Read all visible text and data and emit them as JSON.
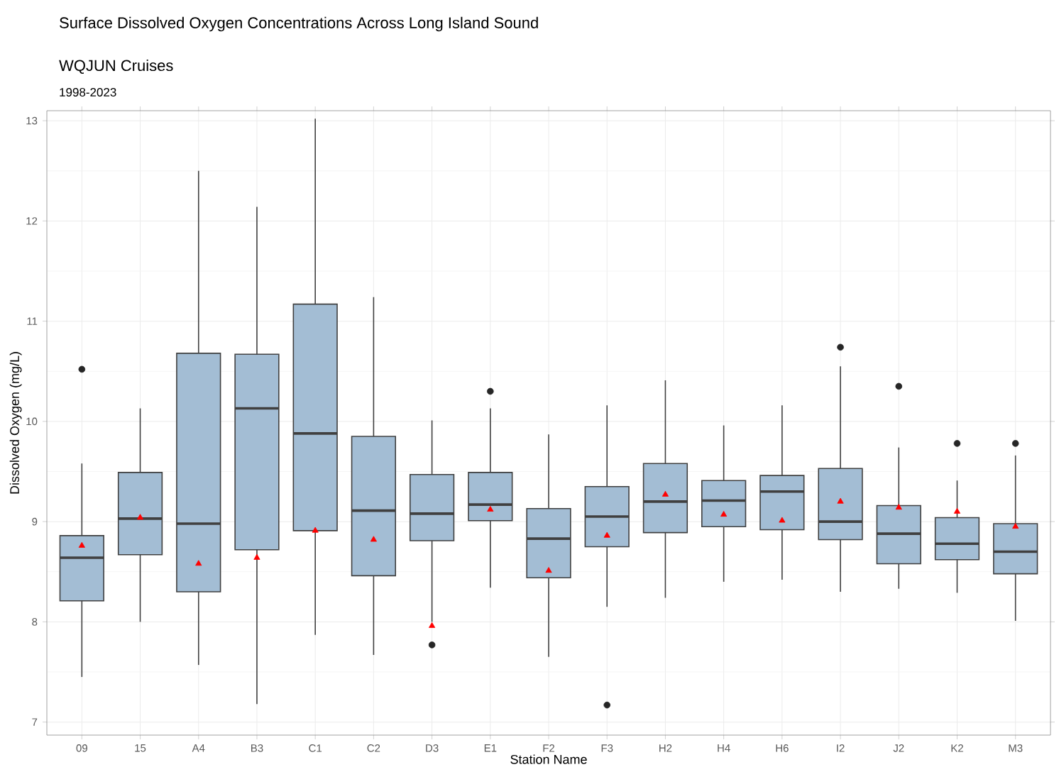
{
  "chart_data": {
    "type": "box",
    "title": "Surface Dissolved Oxygen Concentrations Across Long Island Sound",
    "subtitle": "WQJUN Cruises",
    "annotations": [
      "1998-2023"
    ],
    "xlabel": "Station Name",
    "ylabel": "Dissolved Oxygen (mg/L)",
    "categories": [
      "09",
      "15",
      "A4",
      "B3",
      "C1",
      "C2",
      "D3",
      "E1",
      "F2",
      "F3",
      "H2",
      "H4",
      "H6",
      "I2",
      "J2",
      "K2",
      "M3"
    ],
    "color": "#a3bdd4",
    "ylim": [
      6.87,
      13.1
    ],
    "yticks": [
      7,
      8,
      9,
      10,
      11,
      12,
      13
    ],
    "grid": true,
    "boxes": [
      {
        "low": 7.45,
        "q1": 8.21,
        "median": 8.64,
        "q3": 8.86,
        "high": 9.58,
        "mean": 8.76,
        "outliers": [
          10.52
        ]
      },
      {
        "low": 8.0,
        "q1": 8.67,
        "median": 9.03,
        "q3": 9.49,
        "high": 10.13,
        "mean": 9.04
      },
      {
        "low": 7.57,
        "q1": 8.3,
        "median": 8.98,
        "q3": 10.68,
        "high": 12.5,
        "mean": 8.58
      },
      {
        "low": 7.18,
        "q1": 8.72,
        "median": 10.13,
        "q3": 10.67,
        "high": 12.14,
        "mean": 8.64
      },
      {
        "low": 7.87,
        "q1": 8.91,
        "median": 9.88,
        "q3": 11.17,
        "high": 13.02,
        "mean": 8.91
      },
      {
        "low": 7.67,
        "q1": 8.46,
        "median": 9.11,
        "q3": 9.85,
        "high": 11.24,
        "mean": 8.82
      },
      {
        "low": 8.0,
        "q1": 8.81,
        "median": 9.08,
        "q3": 9.47,
        "high": 10.01,
        "mean": 7.96,
        "outliers": [
          7.77
        ]
      },
      {
        "low": 8.34,
        "q1": 9.01,
        "median": 9.17,
        "q3": 9.49,
        "high": 10.13,
        "mean": 9.12,
        "outliers": [
          10.3
        ]
      },
      {
        "low": 7.65,
        "q1": 8.44,
        "median": 8.83,
        "q3": 9.13,
        "high": 9.87,
        "mean": 8.51
      },
      {
        "low": 8.15,
        "q1": 8.75,
        "median": 9.05,
        "q3": 9.35,
        "high": 10.16,
        "mean": 8.86,
        "outliers": [
          7.17
        ]
      },
      {
        "low": 8.24,
        "q1": 8.89,
        "median": 9.2,
        "q3": 9.58,
        "high": 10.41,
        "mean": 9.27
      },
      {
        "low": 8.4,
        "q1": 8.95,
        "median": 9.21,
        "q3": 9.41,
        "high": 9.96,
        "mean": 9.07
      },
      {
        "low": 8.42,
        "q1": 8.92,
        "median": 9.3,
        "q3": 9.46,
        "high": 10.16,
        "mean": 9.01
      },
      {
        "low": 8.3,
        "q1": 8.82,
        "median": 9.0,
        "q3": 9.53,
        "high": 10.55,
        "mean": 9.2,
        "outliers": [
          10.74
        ]
      },
      {
        "low": 8.33,
        "q1": 8.58,
        "median": 8.88,
        "q3": 9.16,
        "high": 9.74,
        "mean": 9.14,
        "outliers": [
          10.35
        ]
      },
      {
        "low": 8.29,
        "q1": 8.62,
        "median": 8.78,
        "q3": 9.04,
        "high": 9.41,
        "mean": 9.1,
        "outliers": [
          9.78
        ]
      },
      {
        "low": 8.01,
        "q1": 8.48,
        "median": 8.7,
        "q3": 8.98,
        "high": 9.66,
        "mean": 8.95,
        "outliers": [
          9.78
        ]
      }
    ]
  }
}
